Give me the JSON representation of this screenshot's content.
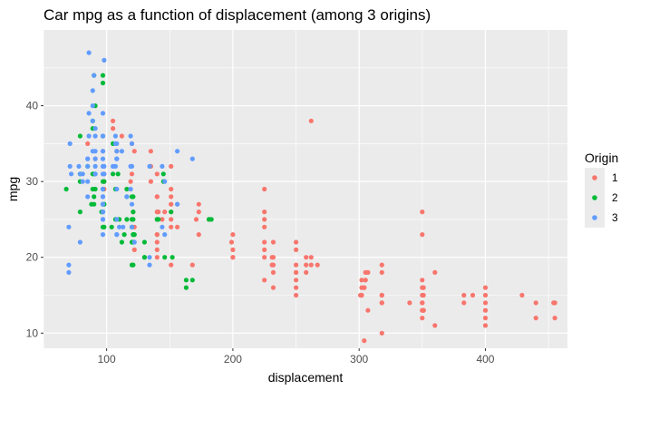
{
  "chart_data": {
    "type": "scatter",
    "title": "Car mpg as a function of displacement (among 3 origins)",
    "xlabel": "displacement",
    "ylabel": "mpg",
    "xlim": [
      50,
      465
    ],
    "ylim": [
      8,
      50
    ],
    "xticks": [
      100,
      200,
      300,
      400
    ],
    "yticks": [
      10,
      20,
      30,
      40
    ],
    "grid": true,
    "legend": {
      "title": "Origin",
      "placement": "right"
    },
    "colors": {
      "1": "#F8766D",
      "2": "#00BA38",
      "3": "#619CFF",
      "panel": "#EBEBEB",
      "gridline": "#FFFFFF"
    },
    "series": [
      {
        "name": "1",
        "points": [
          [
            307,
            18
          ],
          [
            350,
            15
          ],
          [
            318,
            18
          ],
          [
            304,
            16
          ],
          [
            302,
            17
          ],
          [
            429,
            15
          ],
          [
            454,
            14
          ],
          [
            440,
            14
          ],
          [
            455,
            14
          ],
          [
            390,
            15
          ],
          [
            383,
            15
          ],
          [
            340,
            14
          ],
          [
            400,
            15
          ],
          [
            455,
            14
          ],
          [
            199,
            22
          ],
          [
            200,
            21
          ],
          [
            232,
            18
          ],
          [
            225,
            21
          ],
          [
            250,
            18
          ],
          [
            250,
            16
          ],
          [
            250,
            19
          ],
          [
            350,
            13
          ],
          [
            400,
            13
          ],
          [
            351,
            13
          ],
          [
            318,
            14
          ],
          [
            383,
            14
          ],
          [
            232,
            19
          ],
          [
            258,
            18
          ],
          [
            225,
            17
          ],
          [
            302,
            15
          ],
          [
            304,
            16
          ],
          [
            400,
            12
          ],
          [
            318,
            10
          ],
          [
            351,
            15
          ],
          [
            304,
            9
          ],
          [
            360,
            11
          ],
          [
            400,
            13
          ],
          [
            350,
            12
          ],
          [
            318,
            14
          ],
          [
            307,
            13
          ],
          [
            250,
            18
          ],
          [
            232,
            16
          ],
          [
            350,
            13
          ],
          [
            400,
            14
          ],
          [
            351,
            13
          ],
          [
            318,
            15
          ],
          [
            262,
            38
          ],
          [
            200,
            20
          ],
          [
            250,
            15
          ],
          [
            232,
            20
          ],
          [
            258,
            20
          ],
          [
            231,
            19
          ],
          [
            225,
            22
          ],
          [
            262,
            20
          ],
          [
            305,
            17
          ],
          [
            351,
            16
          ],
          [
            318,
            15
          ],
          [
            350,
            16
          ],
          [
            400,
            16
          ],
          [
            140,
            26
          ],
          [
            140,
            25
          ],
          [
            122,
            21
          ],
          [
            151,
            27
          ],
          [
            171,
            25
          ],
          [
            173,
            23
          ],
          [
            98,
            29
          ],
          [
            91,
            33
          ],
          [
            140,
            28
          ],
          [
            151,
            24
          ],
          [
            151,
            25
          ],
          [
            156,
            24
          ],
          [
            146,
            26
          ],
          [
            98,
            30
          ],
          [
            121,
            26
          ],
          [
            122,
            34
          ],
          [
            151,
            28
          ],
          [
            140,
            28
          ],
          [
            120,
            35
          ],
          [
            135,
            30
          ],
          [
            151,
            27
          ],
          [
            144,
            25
          ],
          [
            97,
            34
          ],
          [
            141,
            26
          ],
          [
            105,
            37
          ],
          [
            151,
            32
          ],
          [
            140,
            23
          ],
          [
            135,
            34
          ],
          [
            173,
            26
          ],
          [
            151,
            29
          ],
          [
            181,
            25
          ],
          [
            140,
            21
          ],
          [
            112,
            36
          ],
          [
            119,
            30
          ],
          [
            122,
            24
          ],
          [
            98,
            31
          ],
          [
            140,
            31
          ],
          [
            156,
            27
          ],
          [
            151,
            26
          ],
          [
            105,
            38
          ],
          [
            85,
            35
          ],
          [
            151,
            19
          ],
          [
            200,
            23
          ],
          [
            225,
            24
          ],
          [
            140,
            22
          ],
          [
            232,
            22
          ],
          [
            225,
            26
          ],
          [
            135,
            32
          ],
          [
            200,
            20
          ],
          [
            168,
            19
          ],
          [
            267,
            19
          ],
          [
            140,
            20
          ],
          [
            250,
            17
          ],
          [
            301,
            15
          ],
          [
            305,
            18
          ],
          [
            318,
            19
          ],
          [
            173,
            27
          ],
          [
            108,
            34
          ],
          [
            120,
            31
          ],
          [
            140,
            23
          ],
          [
            262,
            19
          ],
          [
            250,
            22
          ],
          [
            350,
            23
          ],
          [
            350,
            26
          ],
          [
            231,
            20
          ],
          [
            225,
            20
          ],
          [
            302,
            16
          ],
          [
            305,
            17
          ],
          [
            258,
            19
          ],
          [
            351,
            13
          ],
          [
            350,
            14
          ],
          [
            440,
            12
          ],
          [
            455,
            12
          ],
          [
            400,
            11
          ],
          [
            360,
            18
          ],
          [
            350,
            14
          ],
          [
            250,
            21
          ],
          [
            225,
            29
          ],
          [
            302,
            15
          ],
          [
            225,
            25
          ],
          [
            350,
            17
          ]
        ]
      },
      {
        "name": "2",
        "points": [
          [
            97,
            26
          ],
          [
            97,
            24
          ],
          [
            121,
            26
          ],
          [
            110,
            25
          ],
          [
            107,
            25
          ],
          [
            104,
            24
          ],
          [
            121,
            23
          ],
          [
            97,
            27
          ],
          [
            90,
            28
          ],
          [
            116,
            25
          ],
          [
            97,
            29
          ],
          [
            140,
            25
          ],
          [
            120,
            22
          ],
          [
            121,
            23
          ],
          [
            98,
            24
          ],
          [
            96,
            26
          ],
          [
            121,
            25
          ],
          [
            130,
            20
          ],
          [
            79,
            26
          ],
          [
            120,
            19
          ],
          [
            107,
            29
          ],
          [
            116,
            28
          ],
          [
            122,
            23
          ],
          [
            121,
            22
          ],
          [
            98,
            27
          ],
          [
            90,
            27
          ],
          [
            79,
            31
          ],
          [
            88,
            27
          ],
          [
            79,
            30
          ],
          [
            97,
            30
          ],
          [
            89,
            29
          ],
          [
            91,
            29
          ],
          [
            97,
            36
          ],
          [
            121,
            19
          ],
          [
            116,
            29
          ],
          [
            68,
            29
          ],
          [
            89,
            31
          ],
          [
            120,
            25
          ],
          [
            130,
            20
          ],
          [
            90,
            31
          ],
          [
            146,
            20
          ],
          [
            89,
            37
          ],
          [
            98,
            27
          ],
          [
            120,
            24
          ],
          [
            163,
            17
          ],
          [
            163,
            16
          ],
          [
            105,
            35
          ],
          [
            105,
            31
          ],
          [
            85,
            32
          ],
          [
            89,
            38
          ],
          [
            79,
            36
          ],
          [
            98,
            30
          ],
          [
            97,
            44
          ],
          [
            90,
            44
          ],
          [
            97,
            43
          ],
          [
            91,
            40
          ],
          [
            120,
            28
          ],
          [
            130,
            22
          ],
          [
            181,
            25
          ],
          [
            141,
            25
          ],
          [
            183,
            25
          ],
          [
            112,
            22
          ],
          [
            145,
            31
          ],
          [
            145,
            30
          ],
          [
            109,
            31
          ],
          [
            151,
            26
          ],
          [
            121,
            28
          ],
          [
            114,
            23
          ],
          [
            168,
            17
          ],
          [
            152,
            20
          ]
        ]
      },
      {
        "name": "3",
        "points": [
          [
            113,
            24
          ],
          [
            97,
            27
          ],
          [
            97,
            26
          ],
          [
            110,
            24
          ],
          [
            72,
            31
          ],
          [
            120,
            24
          ],
          [
            70,
            19
          ],
          [
            71,
            35
          ],
          [
            97,
            28
          ],
          [
            97,
            23
          ],
          [
            97,
            27
          ],
          [
            70,
            18
          ],
          [
            116,
            28
          ],
          [
            156,
            34
          ],
          [
            97,
            29
          ],
          [
            108,
            23
          ],
          [
            108,
            23
          ],
          [
            71,
            32
          ],
          [
            85,
            32
          ],
          [
            91,
            31
          ],
          [
            97,
            26
          ],
          [
            134,
            20
          ],
          [
            119,
            32
          ],
          [
            81,
            30
          ],
          [
            97,
            25
          ],
          [
            97,
            32
          ],
          [
            98,
            31
          ],
          [
            108,
            25
          ],
          [
            134,
            19
          ],
          [
            107,
            36
          ],
          [
            98,
            32
          ],
          [
            91,
            36
          ],
          [
            91,
            34
          ],
          [
            97,
            25
          ],
          [
            89,
            34
          ],
          [
            79,
            31
          ],
          [
            85,
            33
          ],
          [
            86,
            47
          ],
          [
            98,
            46
          ],
          [
            89,
            42
          ],
          [
            90,
            44
          ],
          [
            78,
            32
          ],
          [
            119,
            29
          ],
          [
            107,
            35
          ],
          [
            108,
            34
          ],
          [
            86,
            39
          ],
          [
            85,
            33
          ],
          [
            89,
            38
          ],
          [
            108,
            33
          ],
          [
            105,
            32
          ],
          [
            122,
            22
          ],
          [
            146,
            30
          ],
          [
            156,
            27
          ],
          [
            168,
            33
          ],
          [
            144,
            32
          ],
          [
            91,
            37
          ],
          [
            97,
            39
          ],
          [
            120,
            35
          ],
          [
            108,
            33
          ],
          [
            91,
            32
          ],
          [
            97,
            36
          ],
          [
            70,
            24
          ],
          [
            120,
            27
          ],
          [
            146,
            23
          ],
          [
            97,
            28
          ],
          [
            97,
            31
          ],
          [
            144,
            24
          ],
          [
            91,
            31
          ],
          [
            112,
            34
          ],
          [
            97,
            34
          ],
          [
            85,
            28
          ],
          [
            97,
            33
          ],
          [
            89,
            40
          ],
          [
            108,
            35
          ],
          [
            91,
            33
          ],
          [
            86,
            36
          ],
          [
            120,
            32
          ],
          [
            107,
            32
          ],
          [
            85,
            30
          ],
          [
            119,
            36
          ],
          [
            79,
            22
          ],
          [
            134,
            32
          ],
          [
            108,
            29
          ],
          [
            81,
            31
          ]
        ]
      }
    ]
  }
}
